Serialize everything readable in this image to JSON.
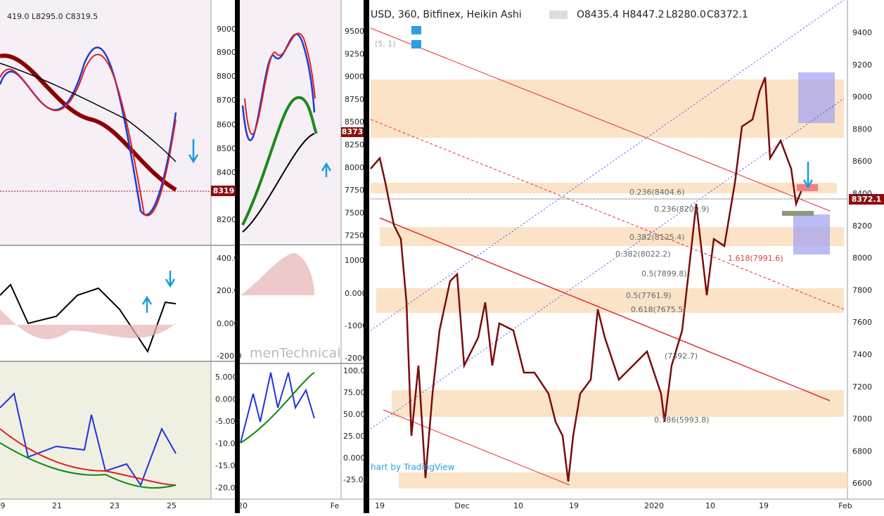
{
  "left_panel": {
    "header": "419.0 L8295.0 C8319.5",
    "price_axis": [
      "9000",
      "8900",
      "8800",
      "8700",
      "8600",
      "8500",
      "8400",
      "8200"
    ],
    "price_tag": "8319",
    "osc_axis": [
      "400.0",
      "200.0",
      "0.000",
      "-200.0"
    ],
    "macd_axis": [
      "5.000",
      "0.000",
      "-5.000",
      "-10.0",
      "-15.0",
      "-20.0"
    ],
    "time_axis": [
      "9",
      "21",
      "23",
      "25"
    ]
  },
  "middle_panel": {
    "price_axis": [
      "9500",
      "9250",
      "9000",
      "8750",
      "8500",
      "8250",
      "8000",
      "7750",
      "7500",
      "7250"
    ],
    "price_tag": "8373",
    "osc_axis": [
      "1000",
      "0.000",
      "-1000",
      "-2000"
    ],
    "watermark": "menTechnical",
    "stoch_axis": [
      "100.0",
      "75.00",
      "50.00",
      "25.00",
      "0.000",
      "-25.00"
    ],
    "time_axis": [
      "20",
      "Fe"
    ]
  },
  "right_panel": {
    "title": "USD, 360, Bitfinex, Heikin Ashi",
    "ohlc": [
      "O8435.4",
      "H8447.2",
      "L8280.0",
      "C8372.1"
    ],
    "indicator": "(5, 1)",
    "price_axis": [
      "9400",
      "9200",
      "9000",
      "8800",
      "8600",
      "8400",
      "8200",
      "8000",
      "7800",
      "7600",
      "7400",
      "7200",
      "7000",
      "6800",
      "6600"
    ],
    "price_tag": "8372.1",
    "time_axis": [
      "19",
      "Dec",
      "10",
      "19",
      "2020",
      "10",
      "19",
      "Feb"
    ],
    "fib_labels": [
      "0.236(8404.6)",
      "0.236(8209.9)",
      "0.382(8125.4)",
      "0.382(8022.2)",
      "1.618(7991.6)",
      "0.5(7899.8)",
      "0.5(7761.9)",
      "0.618(7675.5)",
      "(7392.7)",
      "0.786(5993.8)"
    ],
    "attribution": "hart by TradingView"
  }
}
